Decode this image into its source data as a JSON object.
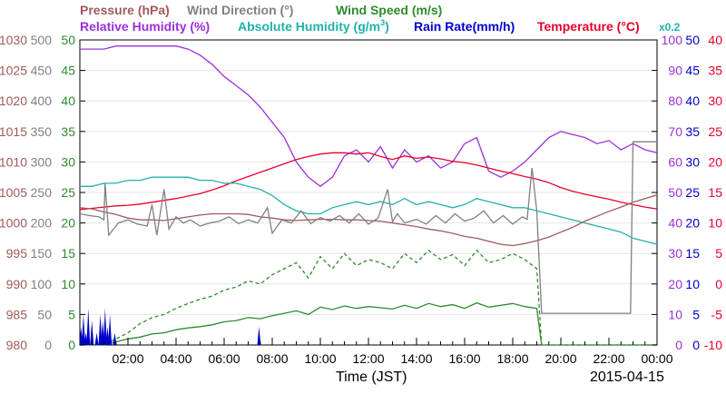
{
  "chart_data": {
    "type": "line",
    "date": "2015-04-15",
    "xlabel": "Time (JST)",
    "x_ticks": [
      "02:00",
      "04:00",
      "06:00",
      "08:00",
      "10:00",
      "12:00",
      "14:00",
      "16:00",
      "18:00",
      "20:00",
      "22:00",
      "00:00"
    ],
    "x_range_hours": [
      0,
      24
    ],
    "headers": {
      "pressure": "Pressure (hPa)",
      "wind_direction": "Wind Direction (°)",
      "wind_speed": "Wind Speed (m/s)",
      "relative_humidity": "Relative Humidity (%)",
      "absolute_humidity_prefix": "Absolute Humidity (g/m",
      "absolute_humidity_sup": "3",
      "absolute_humidity_suffix": ")",
      "rain_rate": "Rain Rate(mm/h)",
      "temperature": "Temperature (°C)",
      "scale_note": "x0.2"
    },
    "axes": {
      "pressure": {
        "ticks": [
          980,
          985,
          990,
          995,
          1000,
          1005,
          1010,
          1015,
          1020,
          1025,
          1030
        ],
        "range": [
          980,
          1030
        ],
        "color": "#a05a5a"
      },
      "wind_direction": {
        "ticks": [
          0,
          50,
          100,
          150,
          200,
          250,
          300,
          350,
          400,
          450,
          500
        ],
        "range": [
          0,
          500
        ],
        "color": "#808080"
      },
      "wind_speed": {
        "ticks": [
          0,
          5,
          10,
          15,
          20,
          25,
          30,
          35,
          40,
          45,
          50
        ],
        "range": [
          0,
          50
        ],
        "color": "#2e8b2e"
      },
      "relative_humidity": {
        "ticks": [
          0,
          10,
          20,
          30,
          40,
          50,
          60,
          70,
          80,
          90,
          100
        ],
        "range": [
          0,
          100
        ],
        "color": "#9b30d9"
      },
      "rain_rate": {
        "ticks": [
          0,
          5,
          10,
          15,
          20,
          25,
          30,
          35,
          40,
          45,
          50
        ],
        "range": [
          0,
          50
        ],
        "color": "#0000cc"
      },
      "temperature": {
        "ticks": [
          -10,
          -5,
          0,
          5,
          10,
          15,
          20,
          25,
          30,
          35,
          40
        ],
        "range": [
          -10,
          40
        ],
        "color": "#e8002a"
      }
    },
    "colors": {
      "absolute_humidity": "#20b2aa",
      "wind_speed_gust": "#2e8b2e"
    },
    "series": [
      {
        "name": "Relative Humidity",
        "axis": "relative_humidity",
        "color": "#9b30d9",
        "x": [
          0,
          0.5,
          1,
          1.5,
          2,
          2.5,
          3,
          3.5,
          4,
          4.5,
          5,
          5.5,
          6,
          6.5,
          7,
          7.5,
          8,
          8.5,
          9,
          9.5,
          10,
          10.5,
          11,
          11.5,
          12,
          12.5,
          13,
          13.5,
          14,
          14.5,
          15,
          15.5,
          16,
          16.5,
          17,
          17.5,
          18,
          18.5,
          19,
          19.5,
          20,
          20.5,
          21,
          21.5,
          22,
          22.5,
          23,
          23.5,
          24
        ],
        "y": [
          97,
          97,
          97,
          98,
          98,
          98,
          98,
          98,
          98,
          97,
          95,
          92,
          88,
          85,
          82,
          78,
          73,
          68,
          60,
          55,
          52,
          55,
          62,
          64,
          60,
          65,
          58,
          64,
          60,
          62,
          58,
          60,
          66,
          68,
          57,
          55,
          57,
          60,
          64,
          68,
          70,
          69,
          68,
          66,
          67,
          64,
          66,
          64,
          63
        ]
      },
      {
        "name": "Temperature",
        "axis": "temperature",
        "color": "#e8002a",
        "x": [
          0,
          0.5,
          1,
          1.5,
          2,
          2.5,
          3,
          3.5,
          4,
          4.5,
          5,
          5.5,
          6,
          6.5,
          7,
          7.5,
          8,
          8.5,
          9,
          9.5,
          10,
          10.5,
          11,
          11.5,
          12,
          12.5,
          13,
          13.5,
          14,
          14.5,
          15,
          15.5,
          16,
          16.5,
          17,
          17.5,
          18,
          18.5,
          19,
          19.5,
          20,
          20.5,
          21,
          21.5,
          22,
          22.5,
          23,
          23.5,
          24
        ],
        "y": [
          12.2,
          12.4,
          12.6,
          12.8,
          12.9,
          13.1,
          13.4,
          13.7,
          14.0,
          14.4,
          14.8,
          15.4,
          16.1,
          16.9,
          17.6,
          18.3,
          19.0,
          19.7,
          20.4,
          20.9,
          21.3,
          21.5,
          21.5,
          21.3,
          21.5,
          20.9,
          20.4,
          21.0,
          20.6,
          20.8,
          20.5,
          20.1,
          19.9,
          19.5,
          19.0,
          18.5,
          18.1,
          17.6,
          17.2,
          16.6,
          15.8,
          15.2,
          14.7,
          14.3,
          13.9,
          13.4,
          13.0,
          12.6,
          12.3
        ]
      },
      {
        "name": "Absolute Humidity",
        "axis": "relative_humidity",
        "color": "#20b2aa",
        "x": [
          0,
          0.5,
          1,
          1.5,
          2,
          2.5,
          3,
          3.5,
          4,
          4.5,
          5,
          5.5,
          6,
          6.5,
          7,
          7.5,
          8,
          8.5,
          9,
          9.5,
          10,
          10.5,
          11,
          11.5,
          12,
          12.5,
          13,
          13.5,
          14,
          14.5,
          15,
          15.5,
          16,
          16.5,
          17,
          17.5,
          18,
          18.5,
          19,
          19.5,
          20,
          20.5,
          21,
          21.5,
          22,
          22.5,
          23,
          23.5,
          24
        ],
        "y": [
          52,
          52,
          53,
          53,
          54,
          54,
          55,
          55,
          55,
          55,
          54,
          54,
          53,
          53,
          52,
          51,
          49,
          46,
          44,
          43,
          43,
          45,
          46,
          47,
          46,
          47,
          46,
          48,
          46,
          47,
          46,
          45,
          46,
          48,
          47,
          46,
          45,
          45,
          44,
          43,
          42,
          41,
          40,
          39,
          38,
          37,
          35,
          34,
          33
        ]
      },
      {
        "name": "Pressure",
        "axis": "pressure",
        "color": "#a05a5a",
        "x": [
          0,
          0.5,
          1,
          1.5,
          2,
          2.5,
          3,
          3.5,
          4,
          4.5,
          5,
          5.5,
          6,
          6.5,
          7,
          7.5,
          8,
          8.5,
          9,
          9.5,
          10,
          10.5,
          11,
          11.5,
          12,
          12.5,
          13,
          13.5,
          14,
          14.5,
          15,
          15.5,
          16,
          16.5,
          17,
          17.5,
          18,
          18.5,
          19,
          19.5,
          20,
          20.5,
          21,
          21.5,
          22,
          22.5,
          23,
          23.5,
          24
        ],
        "y": [
          1002.5,
          1002.3,
          1001.8,
          1001.4,
          1000.8,
          1000.5,
          1000.5,
          1000.4,
          1000.7,
          1001.0,
          1001.3,
          1001.5,
          1001.5,
          1001.5,
          1001.4,
          1001.0,
          1000.8,
          1000.5,
          1000.4,
          1000.5,
          1000.6,
          1000.6,
          1000.5,
          1000.5,
          1000.4,
          1000.3,
          1000.0,
          999.7,
          999.4,
          999.0,
          998.7,
          998.3,
          997.8,
          997.5,
          997.0,
          996.5,
          996.3,
          996.6,
          997.1,
          997.7,
          998.5,
          999.3,
          1000.3,
          1001.1,
          1001.9,
          1002.6,
          1003.4,
          1004.0,
          1004.6
        ]
      },
      {
        "name": "Wind Direction",
        "axis": "wind_direction",
        "color": "#808080",
        "x": [
          0,
          0.4,
          0.8,
          1.0,
          1.05,
          1.2,
          1.6,
          2.0,
          2.4,
          2.8,
          3.0,
          3.2,
          3.5,
          3.7,
          4.0,
          4.3,
          4.6,
          5.0,
          5.4,
          5.8,
          6.2,
          6.6,
          7.0,
          7.4,
          7.8,
          8.0,
          8.4,
          8.8,
          9.2,
          9.6,
          10.0,
          10.4,
          10.8,
          11.2,
          11.6,
          12.0,
          12.4,
          12.8,
          13.0,
          13.2,
          13.5,
          14.0,
          14.4,
          14.8,
          15.2,
          15.6,
          16.0,
          16.4,
          16.8,
          17.2,
          17.6,
          18.0,
          18.4,
          18.6,
          18.8,
          19.0,
          19.2,
          19.5,
          20.0,
          21.0,
          22.0,
          22.9,
          23.0,
          24.0
        ],
        "y": [
          215,
          212,
          210,
          205,
          265,
          180,
          200,
          205,
          198,
          195,
          230,
          180,
          255,
          190,
          210,
          200,
          205,
          195,
          200,
          203,
          210,
          199,
          205,
          200,
          225,
          183,
          205,
          200,
          220,
          199,
          209,
          203,
          212,
          200,
          215,
          198,
          208,
          255,
          202,
          215,
          200,
          206,
          198,
          212,
          200,
          215,
          203,
          208,
          220,
          200,
          212,
          198,
          210,
          206,
          290,
          220,
          52,
          52,
          52,
          52,
          52,
          52,
          333,
          333
        ]
      },
      {
        "name": "Wind Speed (mean)",
        "axis": "wind_speed",
        "color": "#2e8b2e",
        "dash": false,
        "x": [
          0,
          0.5,
          1,
          1.5,
          2,
          2.5,
          3,
          3.5,
          4,
          4.5,
          5,
          5.5,
          6,
          6.5,
          7,
          7.5,
          8,
          8.5,
          9,
          9.5,
          10,
          10.5,
          11,
          11.5,
          12,
          12.5,
          13,
          13.5,
          14,
          14.5,
          15,
          15.5,
          16,
          16.5,
          17,
          17.5,
          18,
          18.5,
          19,
          19.2,
          20,
          24
        ],
        "y": [
          0,
          0,
          0,
          0.5,
          1.0,
          1.3,
          1.8,
          2.0,
          2.5,
          2.8,
          3.0,
          3.3,
          3.8,
          4.0,
          4.5,
          4.3,
          4.8,
          5.2,
          5.6,
          5.0,
          6.2,
          5.8,
          6.4,
          6.0,
          6.3,
          6.1,
          5.9,
          6.5,
          6.0,
          6.8,
          6.3,
          6.6,
          6.0,
          6.9,
          6.2,
          6.5,
          6.8,
          6.3,
          6.0,
          0,
          0,
          0
        ]
      },
      {
        "name": "Wind Speed (gust)",
        "axis": "wind_speed",
        "color": "#2e8b2e",
        "dash": true,
        "x": [
          0,
          0.5,
          1,
          1.5,
          2,
          2.5,
          3,
          3.5,
          4,
          4.5,
          5,
          5.5,
          6,
          6.5,
          7,
          7.5,
          8,
          8.5,
          9,
          9.5,
          10,
          10.5,
          11,
          11.5,
          12,
          12.5,
          13,
          13.5,
          14,
          14.5,
          15,
          15.5,
          16,
          16.5,
          17,
          17.5,
          18,
          18.5,
          19,
          19.2,
          20,
          24
        ],
        "y": [
          0,
          0,
          0,
          1.0,
          2.0,
          3.5,
          4.5,
          5.0,
          6.0,
          6.8,
          7.5,
          8.0,
          9.0,
          9.5,
          10.5,
          10.0,
          11.5,
          12.5,
          13.5,
          11.0,
          14.5,
          12.5,
          15.0,
          13.0,
          14.0,
          13.5,
          12.5,
          15.0,
          13.5,
          15.5,
          14.0,
          14.8,
          13.0,
          15.5,
          13.5,
          14.0,
          15.0,
          14.0,
          12.5,
          0,
          0,
          0
        ]
      },
      {
        "name": "Rain Rate",
        "axis": "rain_rate",
        "color": "#0000cc",
        "x": [
          0.05,
          0.15,
          0.25,
          0.35,
          0.5,
          0.7,
          0.85,
          0.95,
          1.05,
          1.15,
          1.25,
          1.45,
          7.45
        ],
        "y": [
          3,
          5,
          2,
          6,
          4,
          2,
          5,
          4,
          6,
          3,
          5,
          2,
          3
        ]
      }
    ]
  }
}
